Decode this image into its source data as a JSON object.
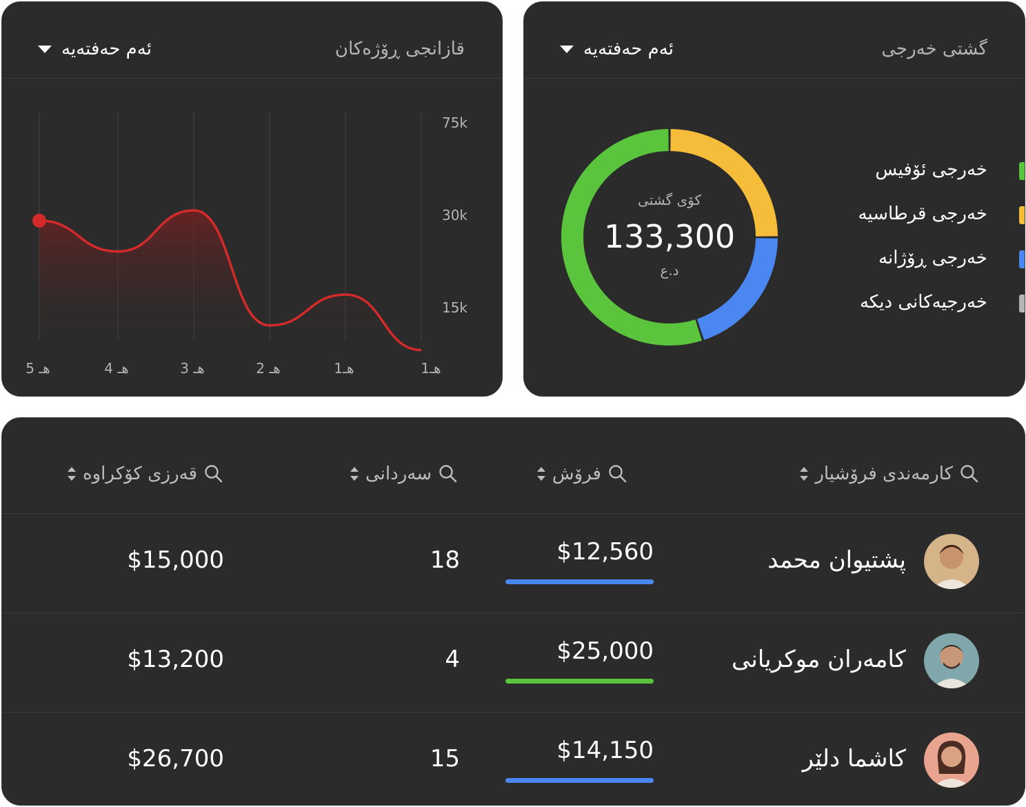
{
  "daily_income": {
    "title": "قازانجی ڕۆژەکان",
    "period": "ئەم حەفتەیە",
    "chart_data": {
      "type": "line",
      "title": "قازانجی ڕۆژەکان",
      "categories": [
        "5 هـ",
        "4 هـ",
        "3 هـ",
        "2 هـ",
        "1هـ",
        "1هـ"
      ],
      "y_ticks": [
        "75k",
        "30k",
        "15k"
      ],
      "series": [
        {
          "values": [
            29,
            24,
            32,
            12,
            17,
            8
          ]
        }
      ],
      "grid": "vertical",
      "line_color": "#d42a2a"
    }
  },
  "expense_total": {
    "title": "گشتی خەرجی",
    "period": "ئەم حەفتەیە",
    "center_label": "کۆی گشتی",
    "center_value": "133,300",
    "center_unit": "د.ع",
    "chart_data": {
      "type": "pie",
      "labels": [
        "خەرجی ئۆفیس",
        "خەرجی قرطاسیە",
        "خەرجی ڕۆژانە",
        "خەرجیەکانی دیکە"
      ],
      "values": [
        55,
        25,
        20,
        0
      ],
      "colors": [
        "#5ac43c",
        "#f6bd3b",
        "#4b87f0",
        "#b5b5b5"
      ]
    },
    "legend": [
      {
        "label": "خەرجی ئۆفیس",
        "color": "#5ac43c"
      },
      {
        "label": "خەرجی قرطاسیە",
        "color": "#f6bd3b"
      },
      {
        "label": "خەرجی ڕۆژانە",
        "color": "#4b87f0"
      },
      {
        "label": "خەرجیەکانی دیکە",
        "color": "#b5b5b5"
      }
    ]
  },
  "table": {
    "headers": {
      "employee": "کارمەندی فرۆشیار",
      "sales": "فرۆش",
      "deals": "سەردانی",
      "debt": "قەرزی کۆکراوە"
    },
    "rows": [
      {
        "name": "پشتیوان محمد",
        "sales": "$12,560",
        "sales_color": "#4b87f0",
        "deals": "18",
        "debt": "$15,000",
        "avatar": "person-young-male-curly"
      },
      {
        "name": "کامەران موکریانی",
        "sales": "$25,000",
        "sales_color": "#5ac43c",
        "deals": "4",
        "debt": "$13,200",
        "avatar": "person-male-beard"
      },
      {
        "name": "کاشما دلێر",
        "sales": "$14,150",
        "sales_color": "#4b87f0",
        "deals": "15",
        "debt": "$26,700",
        "avatar": "person-female"
      }
    ]
  }
}
